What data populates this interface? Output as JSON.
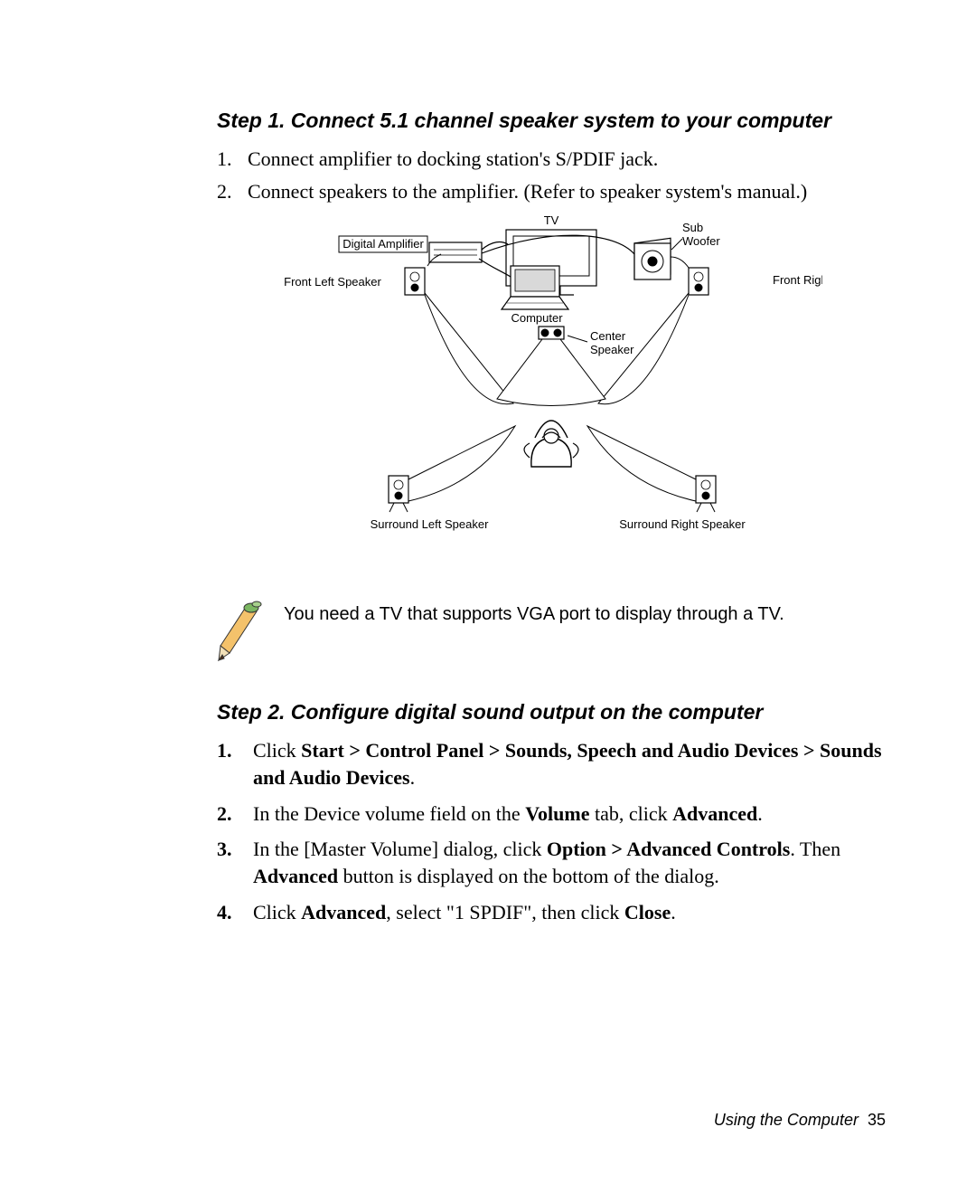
{
  "step1": {
    "title": "Step 1. Connect 5.1 channel speaker system to your computer",
    "items": [
      {
        "n": "1.",
        "text": "Connect amplifier to docking station's S/PDIF jack."
      },
      {
        "n": "2.",
        "text": "Connect speakers to the amplifier. (Refer to speaker system's manual.)"
      }
    ]
  },
  "diagram": {
    "labels": {
      "tv": "TV",
      "sub": "Sub Woofer",
      "amp": "Digital Amplifier",
      "fl": "Front Left Speaker",
      "fr": "Front Right Speaker",
      "computer": "Computer",
      "center": "Center Speaker",
      "sl": "Surround Left Speaker",
      "sr": "Surround Right Speaker"
    },
    "style": {
      "stroke": "#000000",
      "fill_white": "#ffffff",
      "fill_gray": "#d9d9d9",
      "fill_dark": "#808080",
      "font_family": "Arial, Helvetica, sans-serif",
      "label_fontsize": 13
    }
  },
  "note": {
    "text": "You need a TV that supports VGA port to display through a TV."
  },
  "step2": {
    "title": "Step 2. Configure digital sound output on the computer",
    "items": [
      {
        "n": "1.",
        "segments": [
          {
            "t": "Click ",
            "b": false
          },
          {
            "t": "Start > Control Panel > Sounds, Speech and Audio Devices > Sounds and Audio Devices",
            "b": true
          },
          {
            "t": ".",
            "b": false
          }
        ]
      },
      {
        "n": "2.",
        "segments": [
          {
            "t": "In the Device volume field on the ",
            "b": false
          },
          {
            "t": "Volume",
            "b": true
          },
          {
            "t": " tab, click ",
            "b": false
          },
          {
            "t": "Advanced",
            "b": true
          },
          {
            "t": ".",
            "b": false
          }
        ]
      },
      {
        "n": "3.",
        "segments": [
          {
            "t": "In the [Master Volume] dialog, click ",
            "b": false
          },
          {
            "t": "Option > Advanced Controls",
            "b": true
          },
          {
            "t": ". Then ",
            "b": false
          },
          {
            "t": "Advanced",
            "b": true
          },
          {
            "t": " button is displayed on the bottom of the dialog.",
            "b": false
          }
        ]
      },
      {
        "n": "4.",
        "segments": [
          {
            "t": "Click ",
            "b": false
          },
          {
            "t": "Advanced",
            "b": true
          },
          {
            "t": ", select \"1 SPDIF\", then click ",
            "b": false
          },
          {
            "t": "Close",
            "b": true
          },
          {
            "t": ".",
            "b": false
          }
        ]
      }
    ]
  },
  "footer": {
    "label": "Using the Computer",
    "page": "35"
  },
  "colors": {
    "text": "#000000",
    "background": "#ffffff",
    "pencil_body": "#f4c26b",
    "pencil_tip": "#4d2e18",
    "pencil_leaf": "#7bb661"
  }
}
